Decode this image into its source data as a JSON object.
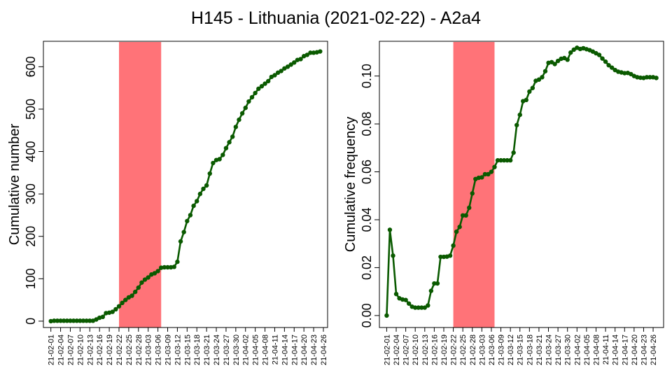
{
  "title": "H145 - Lithuania (2021-02-22) - A2a4",
  "colors": {
    "line": "#0a5a00",
    "highlight": "#ff7378",
    "axis": "#000000"
  },
  "chart_data": [
    {
      "type": "line",
      "panel": "left",
      "ylabel": "Cumulative number",
      "ylim": [
        -15,
        660
      ],
      "yticks": [
        0,
        100,
        200,
        300,
        400,
        500,
        600
      ],
      "ytick_labels": [
        "0",
        "100",
        "200",
        "300",
        "400",
        "500",
        "600"
      ],
      "highlight_range": [
        "21-02-22",
        "21-03-07"
      ],
      "x_tick_labels": [
        "21-02-01",
        "21-02-04",
        "21-02-07",
        "21-02-10",
        "21-02-13",
        "21-02-16",
        "21-02-19",
        "21-02-22",
        "21-02-25",
        "21-02-28",
        "21-03-03",
        "21-03-06",
        "21-03-09",
        "21-03-12",
        "21-03-15",
        "21-03-18",
        "21-03-21",
        "21-03-24",
        "21-03-27",
        "21-03-30",
        "21-04-02",
        "21-04-05",
        "21-04-08",
        "21-04-11",
        "21-04-14",
        "21-04-17",
        "21-04-20",
        "21-04-23",
        "21-04-26"
      ],
      "x_start": "21-02-01",
      "values": [
        0,
        1,
        1,
        1,
        1,
        1,
        1,
        1,
        1,
        1,
        1,
        1,
        1,
        1,
        4,
        8,
        10,
        19,
        20,
        22,
        28,
        35,
        43,
        50,
        56,
        60,
        69,
        79,
        91,
        98,
        103,
        110,
        113,
        118,
        126,
        127,
        127,
        127,
        128,
        140,
        188,
        210,
        236,
        250,
        272,
        283,
        300,
        312,
        320,
        348,
        373,
        380,
        382,
        392,
        408,
        422,
        435,
        458,
        475,
        490,
        503,
        518,
        528,
        538,
        548,
        554,
        560,
        566,
        576,
        580,
        586,
        590,
        596,
        600,
        605,
        610,
        616,
        618,
        625,
        628,
        633,
        633,
        634,
        636
      ],
      "grid": false,
      "legend": "none"
    },
    {
      "type": "line",
      "panel": "right",
      "ylabel": "Cumulative frequency",
      "ylim": [
        -0.005,
        0.1145
      ],
      "yticks": [
        0,
        0.02,
        0.04,
        0.06,
        0.08,
        0.1
      ],
      "ytick_labels": [
        "0.00",
        "0.02",
        "0.04",
        "0.06",
        "0.08",
        "0.10"
      ],
      "highlight_range": [
        "21-02-22",
        "21-03-07"
      ],
      "x_tick_labels": [
        "21-02-01",
        "21-02-04",
        "21-02-07",
        "21-02-10",
        "21-02-13",
        "21-02-16",
        "21-02-19",
        "21-02-22",
        "21-02-25",
        "21-02-28",
        "21-03-03",
        "21-03-06",
        "21-03-09",
        "21-03-12",
        "21-03-15",
        "21-03-18",
        "21-03-21",
        "21-03-24",
        "21-03-27",
        "21-03-30",
        "21-04-02",
        "21-04-05",
        "21-04-08",
        "21-04-11",
        "21-04-14",
        "21-04-17",
        "21-04-20",
        "21-04-23",
        "21-04-26"
      ],
      "x_start": "21-02-01",
      "values": [
        0,
        0.0358,
        0.025,
        0.009,
        0.0072,
        0.0067,
        0.0065,
        0.005,
        0.0037,
        0.0033,
        0.0033,
        0.0033,
        0.0033,
        0.0042,
        0.0103,
        0.0134,
        0.0134,
        0.0245,
        0.0245,
        0.0246,
        0.025,
        0.0292,
        0.035,
        0.037,
        0.0418,
        0.0418,
        0.045,
        0.051,
        0.057,
        0.0575,
        0.0577,
        0.059,
        0.059,
        0.06,
        0.062,
        0.0648,
        0.0648,
        0.0648,
        0.0648,
        0.0648,
        0.068,
        0.0795,
        0.0838,
        0.0895,
        0.09,
        0.0935,
        0.095,
        0.098,
        0.0985,
        0.0995,
        0.102,
        0.1055,
        0.1058,
        0.105,
        0.1063,
        0.1072,
        0.1075,
        0.1068,
        0.1098,
        0.111,
        0.1118,
        0.1113,
        0.1116,
        0.1112,
        0.1108,
        0.1102,
        0.1095,
        0.1088,
        0.1073,
        0.106,
        0.1045,
        0.1035,
        0.1025,
        0.1018,
        0.1015,
        0.1012,
        0.1013,
        0.1008,
        0.1,
        0.0995,
        0.0993,
        0.0992,
        0.0995,
        0.0995,
        0.0995,
        0.0992
      ],
      "grid": false,
      "legend": "none"
    }
  ]
}
